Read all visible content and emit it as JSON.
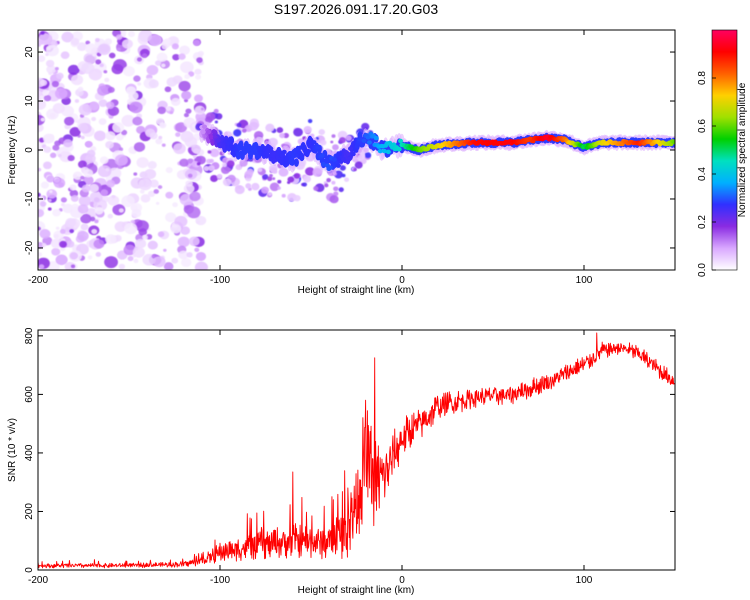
{
  "chart_data": [
    {
      "type": "heatmap",
      "title": "S197.2026.091.17.20.G03",
      "xlabel": "Height of straight line (km)",
      "ylabel": "Frequency (Hz)",
      "xlim": [
        -200,
        150
      ],
      "ylim": [
        -24.5,
        24.5
      ],
      "xticks": [
        -200,
        -100,
        0,
        100
      ],
      "xtick_labels": [
        "-200",
        "-100",
        "0",
        "100"
      ],
      "yticks": [
        -20,
        -10,
        0,
        10,
        20
      ],
      "ytick_labels": [
        "-20",
        "-10",
        "0",
        "10",
        "20"
      ],
      "colorbar": {
        "label": "Normalized spectral amplitude",
        "range": [
          0,
          1
        ],
        "ticks": [
          0,
          0.2,
          0.4,
          0.6,
          0.8
        ],
        "tick_labels": [
          "0.0",
          "0.2",
          "0.4",
          "0.6",
          "0.8"
        ],
        "colors": [
          "#ffffff",
          "#d9a8ff",
          "#8a2be2",
          "#3030ff",
          "#00b0ff",
          "#00e0c0",
          "#00d000",
          "#a0e000",
          "#ffd000",
          "#ff6000",
          "#ff0000",
          "#ff0060"
        ]
      },
      "ridge": {
        "x": [
          -110,
          -100,
          -90,
          -80,
          -70,
          -60,
          -50,
          -40,
          -30,
          -20,
          -10,
          0,
          10,
          20,
          40,
          60,
          70,
          80,
          90,
          100,
          110,
          130,
          150
        ],
        "freq": [
          4,
          2,
          0,
          0,
          -1,
          -2,
          1,
          -3,
          -1,
          3,
          0,
          1,
          0,
          1,
          1.5,
          1.5,
          2,
          2.5,
          2,
          0.5,
          1.5,
          1.5,
          1.5
        ],
        "amplitude": [
          0.1,
          0.25,
          0.28,
          0.28,
          0.26,
          0.28,
          0.27,
          0.3,
          0.25,
          0.3,
          0.38,
          0.45,
          0.6,
          0.7,
          0.9,
          0.92,
          0.85,
          0.95,
          0.8,
          0.5,
          0.7,
          0.88,
          0.6
        ]
      },
      "noise_region": {
        "x_from": -200,
        "x_to": -110,
        "freq_range": [
          -24,
          24
        ],
        "amplitude_range": [
          0.02,
          0.2
        ]
      }
    },
    {
      "type": "line",
      "xlabel": "Height of straight line (km)",
      "ylabel": "SNR (10 * v/v)",
      "xlim": [
        -200,
        150
      ],
      "ylim": [
        0,
        820
      ],
      "xticks": [
        -200,
        -100,
        0,
        100
      ],
      "xtick_labels": [
        "-200",
        "-100",
        "0",
        "100"
      ],
      "yticks": [
        0,
        200,
        400,
        600,
        800
      ],
      "ytick_labels": [
        "0",
        "200",
        "400",
        "600",
        "800"
      ],
      "color": "#ff0000",
      "envelope": {
        "x": [
          -200,
          -150,
          -120,
          -110,
          -100,
          -80,
          -60,
          -40,
          -30,
          -25,
          -20,
          -15,
          -10,
          0,
          10,
          20,
          40,
          60,
          80,
          100,
          110,
          120,
          130,
          140,
          150
        ],
        "y": [
          15,
          15,
          20,
          30,
          60,
          85,
          100,
          95,
          130,
          250,
          380,
          300,
          320,
          450,
          500,
          560,
          590,
          600,
          640,
          700,
          750,
          760,
          740,
          690,
          640
        ],
        "noise_amplitude": [
          8,
          8,
          10,
          15,
          35,
          50,
          60,
          60,
          90,
          150,
          200,
          160,
          110,
          70,
          60,
          50,
          35,
          35,
          35,
          35,
          30,
          25,
          30,
          30,
          30
        ]
      },
      "peaks": [
        {
          "x": -60,
          "y": 335
        },
        {
          "x": -20,
          "y": 580
        },
        {
          "x": -15,
          "y": 725
        },
        {
          "x": 107,
          "y": 810
        }
      ]
    }
  ]
}
